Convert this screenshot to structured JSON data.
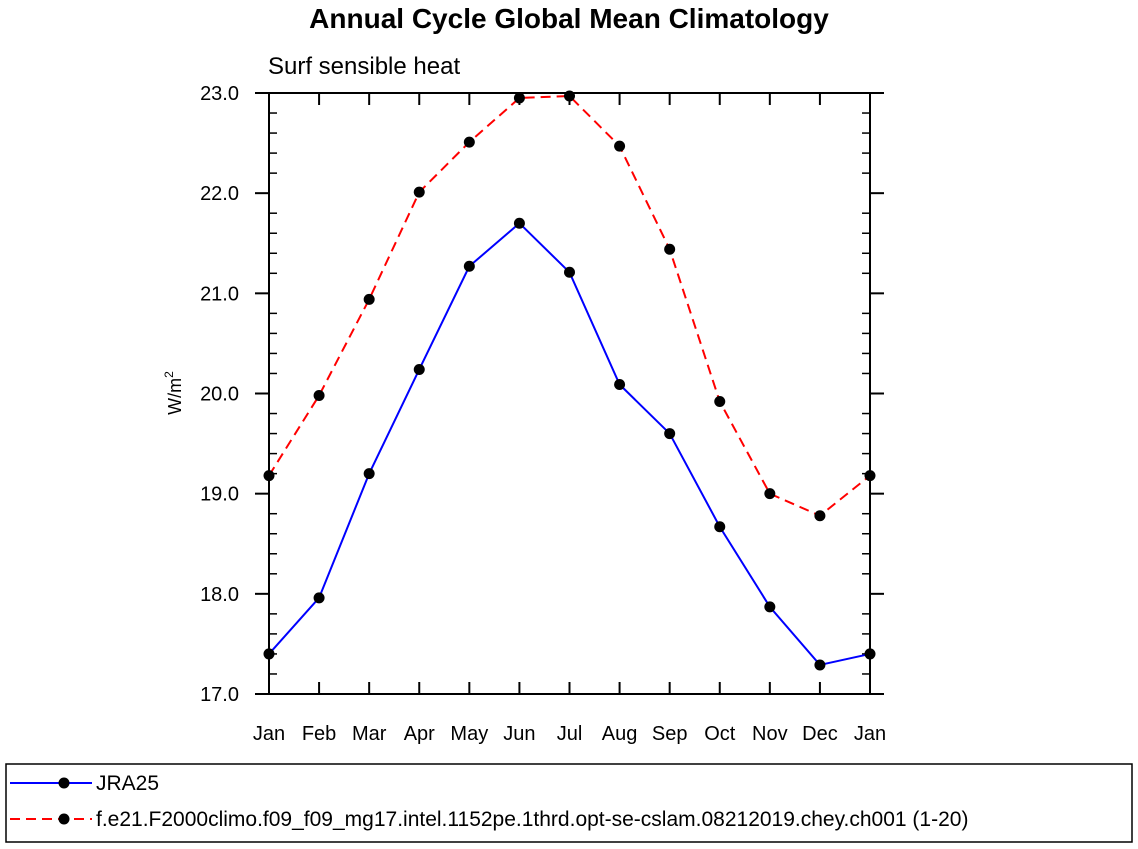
{
  "chart_data": {
    "type": "line",
    "title": "Annual Cycle Global Mean Climatology",
    "subtitle": "Surf sensible heat",
    "ylabel": "W/m",
    "ylabel_sup": "2",
    "categories": [
      "Jan",
      "Feb",
      "Mar",
      "Apr",
      "May",
      "Jun",
      "Jul",
      "Aug",
      "Sep",
      "Oct",
      "Nov",
      "Dec",
      "Jan"
    ],
    "ylim": [
      17.0,
      23.0
    ],
    "yticks": [
      "17.0",
      "18.0",
      "19.0",
      "20.0",
      "21.0",
      "22.0",
      "23.0"
    ],
    "grid": false,
    "legend_position": "bottom",
    "series": [
      {
        "name": "JRA25",
        "color": "#0000ff",
        "dash": "solid",
        "values": [
          17.4,
          17.96,
          19.2,
          20.24,
          21.27,
          21.7,
          21.21,
          20.09,
          19.6,
          18.67,
          17.87,
          17.29,
          17.4
        ]
      },
      {
        "name": "f.e21.F2000climo.f09_f09_mg17.intel.1152pe.1thrd.opt-se-cslam.08212019.chey.ch001 (1-20)",
        "color": "#ff0000",
        "dash": "dashed",
        "values": [
          19.18,
          19.98,
          20.94,
          22.01,
          22.51,
          22.95,
          22.97,
          22.47,
          21.44,
          19.92,
          19.0,
          18.78,
          19.18
        ]
      }
    ]
  }
}
